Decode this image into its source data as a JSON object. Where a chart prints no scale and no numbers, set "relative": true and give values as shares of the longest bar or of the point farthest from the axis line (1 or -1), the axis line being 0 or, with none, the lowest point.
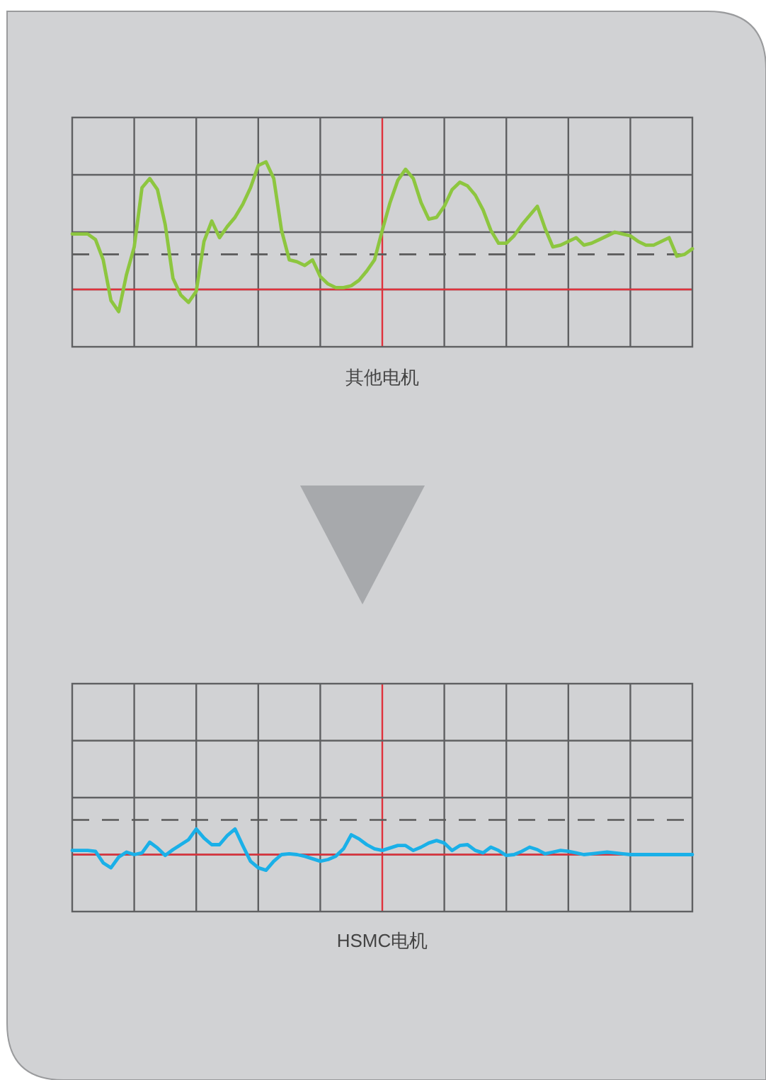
{
  "chart_data": [
    {
      "type": "line",
      "xlabel": "其他电机",
      "relative": true,
      "grid": true,
      "marker": "none",
      "line_style": "solid",
      "ref_lines": [
        {
          "axis": "y",
          "value": 0.31,
          "color": "#e0323c",
          "line_style": "solid"
        },
        {
          "axis": "y",
          "value": 0.5,
          "color": "#5a5a5a",
          "line_style": "dashed"
        }
      ],
      "categories": [
        null,
        null,
        null,
        null,
        null,
        null,
        null,
        null,
        null,
        null,
        null,
        null,
        null,
        null,
        null,
        null,
        null,
        null,
        null,
        null,
        null,
        null,
        null,
        null,
        null,
        null,
        null,
        null,
        null,
        null,
        null,
        null,
        null,
        null,
        null,
        null,
        null,
        null,
        null,
        null,
        null,
        null,
        null,
        null,
        null,
        null,
        null,
        null,
        null,
        null,
        null,
        null,
        null,
        null,
        null,
        null,
        null,
        null,
        null,
        null,
        null,
        null,
        null,
        null,
        null,
        null,
        null,
        null,
        null,
        null,
        null,
        null,
        null,
        null,
        null,
        null,
        null,
        null,
        null,
        null,
        null
      ],
      "series": [
        {
          "color": "#8dc63f",
          "values": [
            0.61,
            0.61,
            0.61,
            0.58,
            0.47,
            0.25,
            0.19,
            0.39,
            0.54,
            0.86,
            0.91,
            0.85,
            0.66,
            0.37,
            0.28,
            0.24,
            0.3,
            0.57,
            0.68,
            0.59,
            0.65,
            0.7,
            0.77,
            0.86,
            0.98,
            1.0,
            0.91,
            0.63,
            0.47,
            0.46,
            0.44,
            0.47,
            0.38,
            0.34,
            0.32,
            0.32,
            0.33,
            0.36,
            0.41,
            0.47,
            0.63,
            0.78,
            0.9,
            0.96,
            0.91,
            0.78,
            0.69,
            0.7,
            0.76,
            0.85,
            0.89,
            0.87,
            0.82,
            0.74,
            0.63,
            0.56,
            0.56,
            0.6,
            0.66,
            0.71,
            0.76,
            0.64,
            0.54,
            0.55,
            0.57,
            0.59,
            0.55,
            0.56,
            0.58,
            0.6,
            0.62,
            0.61,
            0.6,
            0.57,
            0.55,
            0.55,
            0.57,
            0.59,
            0.49,
            0.5,
            0.53
          ]
        }
      ]
    },
    {
      "type": "line",
      "xlabel": "HSMC电机",
      "relative": true,
      "grid": true,
      "marker": "none",
      "line_style": "solid",
      "ref_lines": [
        {
          "axis": "y",
          "value": 0.69,
          "color": "#e0323c",
          "line_style": "solid"
        },
        {
          "axis": "y",
          "value": 1.11,
          "color": "#5a5a5a",
          "line_style": "dashed"
        }
      ],
      "categories": [
        null,
        null,
        null,
        null,
        null,
        null,
        null,
        null,
        null,
        null,
        null,
        null,
        null,
        null,
        null,
        null,
        null,
        null,
        null,
        null,
        null,
        null,
        null,
        null,
        null,
        null,
        null,
        null,
        null,
        null,
        null,
        null,
        null,
        null,
        null,
        null,
        null,
        null,
        null,
        null,
        null,
        null,
        null,
        null,
        null,
        null,
        null,
        null,
        null,
        null,
        null,
        null,
        null,
        null,
        null,
        null,
        null,
        null,
        null,
        null,
        null,
        null,
        null,
        null,
        null,
        null,
        null,
        null,
        null,
        null,
        null,
        null,
        null,
        null,
        null,
        null,
        null,
        null,
        null,
        null,
        null
      ],
      "series": [
        {
          "color": "#1ab0e8",
          "values": [
            0.74,
            0.74,
            0.74,
            0.73,
            0.59,
            0.53,
            0.66,
            0.72,
            0.69,
            0.71,
            0.84,
            0.77,
            0.68,
            0.75,
            0.81,
            0.87,
            1.0,
            0.89,
            0.81,
            0.81,
            0.92,
            1.0,
            0.8,
            0.61,
            0.53,
            0.5,
            0.61,
            0.69,
            0.7,
            0.69,
            0.67,
            0.64,
            0.61,
            0.63,
            0.67,
            0.76,
            0.93,
            0.88,
            0.81,
            0.76,
            0.74,
            0.77,
            0.8,
            0.8,
            0.74,
            0.78,
            0.83,
            0.86,
            0.83,
            0.74,
            0.8,
            0.81,
            0.74,
            0.71,
            0.78,
            0.74,
            0.68,
            0.69,
            0.73,
            0.78,
            0.75,
            0.7,
            0.72,
            0.74,
            0.73,
            0.71,
            0.69,
            0.7,
            0.71,
            0.72,
            0.71,
            0.7,
            0.69,
            0.69,
            0.69,
            0.69,
            0.69,
            0.69,
            0.69,
            0.69,
            0.69
          ]
        }
      ]
    }
  ]
}
